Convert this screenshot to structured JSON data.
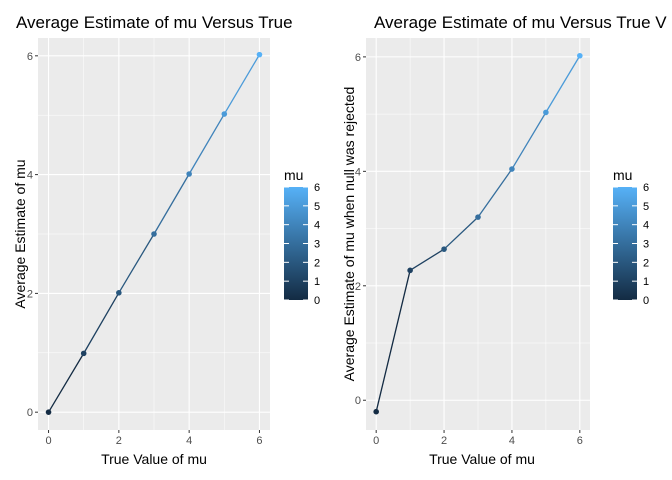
{
  "chart_data": [
    {
      "type": "line",
      "title": "Average Estimate of mu Versus True",
      "xlabel": "True Value of mu",
      "ylabel": "Average Estimate of mu",
      "x": [
        0,
        1,
        2,
        3,
        4,
        5,
        6
      ],
      "series": [
        {
          "values": [
            0.0,
            0.99,
            2.01,
            3.0,
            4.01,
            5.02,
            6.02
          ]
        }
      ],
      "xlim": [
        -0.3,
        6.3
      ],
      "ylim": [
        -0.3,
        6.3
      ],
      "xticks": [
        0,
        2,
        4,
        6
      ],
      "yticks": [
        0,
        2,
        4,
        6
      ],
      "grid": true,
      "legend": {
        "title": "mu",
        "type": "colorbar",
        "ticks": [
          0,
          1,
          2,
          3,
          4,
          5,
          6
        ],
        "placement": "right",
        "low_color": "#132B43",
        "high_color": "#56B1F7"
      }
    },
    {
      "type": "line",
      "title": "Average Estimate of mu Versus True V",
      "xlabel": "True Value of mu",
      "ylabel": "Average Estimate of mu when null was rejected",
      "x": [
        0,
        1,
        2,
        3,
        4,
        5,
        6
      ],
      "series": [
        {
          "values": [
            -0.2,
            2.27,
            2.64,
            3.2,
            4.04,
            5.03,
            6.02
          ]
        }
      ],
      "xlim": [
        -0.3,
        6.3
      ],
      "ylim": [
        -0.52,
        6.33
      ],
      "xticks": [
        0,
        2,
        4,
        6
      ],
      "yticks": [
        0,
        2,
        4,
        6
      ],
      "grid": true,
      "legend": {
        "title": "mu",
        "type": "colorbar",
        "ticks": [
          0,
          1,
          2,
          3,
          4,
          5,
          6
        ],
        "placement": "right",
        "low_color": "#132B43",
        "high_color": "#56B1F7"
      }
    }
  ],
  "colors": {
    "panel_bg": "#EBEBEB",
    "grid_major": "#FFFFFF",
    "tick_text": "#4D4D4D",
    "title_text": "#000000"
  }
}
